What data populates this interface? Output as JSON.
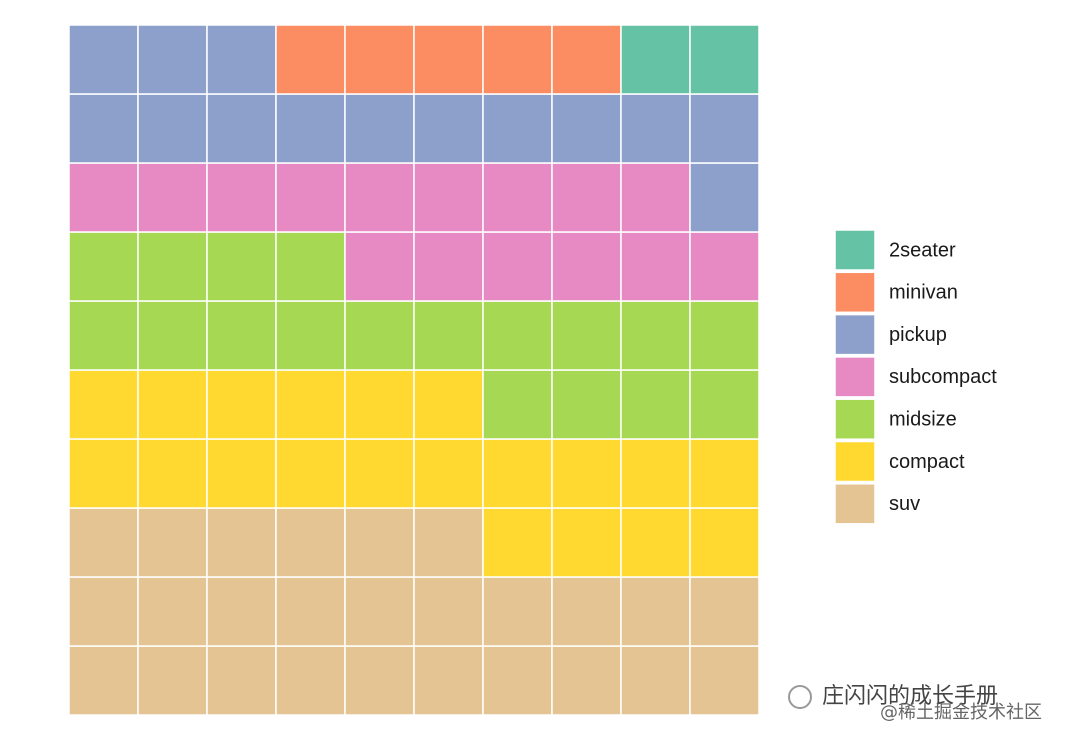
{
  "chart_data": {
    "type": "waffle",
    "categories": [
      "2seater",
      "minivan",
      "pickup",
      "subcompact",
      "midsize",
      "compact",
      "suv"
    ],
    "values": [
      2,
      5,
      14,
      15,
      18,
      20,
      26
    ],
    "colors": [
      "#66c2a5",
      "#fc8d62",
      "#8da0cb",
      "#e78ac3",
      "#a6d854",
      "#ffd92f",
      "#e5c494"
    ],
    "legend": "right"
  },
  "watermark": {
    "account": "庄闪闪的成长手册",
    "site": "@稀土掘金技术社区"
  }
}
